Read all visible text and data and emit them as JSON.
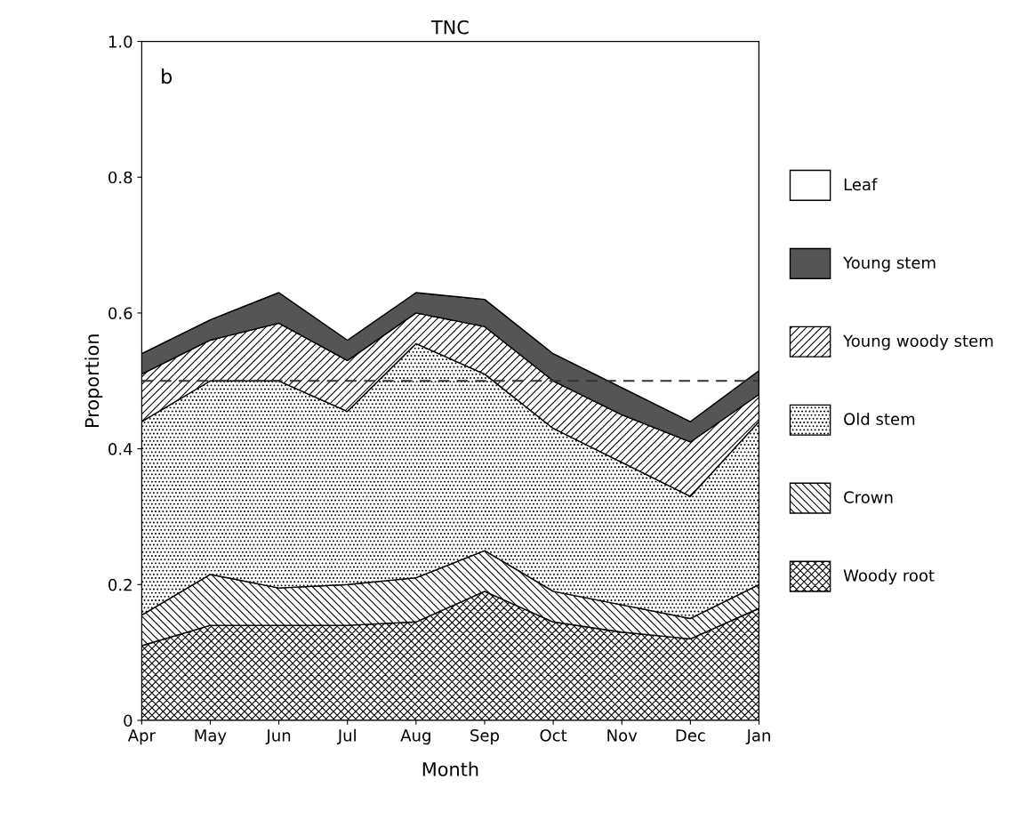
{
  "chart_data": {
    "type": "area",
    "stacked": true,
    "title": "TNC",
    "xlabel": "Month",
    "ylabel": "Proportion",
    "categories": [
      "Apr",
      "May",
      "Jun",
      "Jul",
      "Aug",
      "Sep",
      "Oct",
      "Nov",
      "Dec",
      "Jan"
    ],
    "series": [
      {
        "name": "Woody root",
        "color": "#000000",
        "values": [
          0.11,
          0.14,
          0.14,
          0.14,
          0.145,
          0.19,
          0.145,
          0.13,
          0.12,
          0.165
        ]
      },
      {
        "name": "Crown",
        "color": "#000000",
        "values": [
          0.045,
          0.075,
          0.055,
          0.06,
          0.065,
          0.06,
          0.045,
          0.04,
          0.03,
          0.035
        ]
      },
      {
        "name": "Old stem",
        "color": "#000000",
        "values": [
          0.285,
          0.285,
          0.305,
          0.255,
          0.345,
          0.26,
          0.24,
          0.21,
          0.18,
          0.24
        ]
      },
      {
        "name": "Young woody stem",
        "color": "#000000",
        "values": [
          0.07,
          0.06,
          0.085,
          0.075,
          0.045,
          0.07,
          0.07,
          0.07,
          0.08,
          0.04
        ]
      },
      {
        "name": "Young stem",
        "color": "#555555",
        "values": [
          0.03,
          0.03,
          0.045,
          0.03,
          0.03,
          0.04,
          0.04,
          0.04,
          0.03,
          0.035
        ]
      },
      {
        "name": "Leaf",
        "color": "#ffffff",
        "values": [
          0.46,
          0.41,
          0.37,
          0.44,
          0.37,
          0.38,
          0.46,
          0.51,
          0.56,
          0.485
        ]
      }
    ],
    "ylim": [
      0,
      1
    ],
    "yticks": [
      0,
      0.2,
      0.4,
      0.6,
      0.8,
      {
        "value": 1,
        "label": "1.0"
      }
    ],
    "ref_lines": [
      {
        "axis": "y",
        "value": 0.5,
        "line_style": "dashed",
        "color": "#333333"
      }
    ],
    "annotations": [
      "b"
    ],
    "legend": "right",
    "grid": false
  }
}
